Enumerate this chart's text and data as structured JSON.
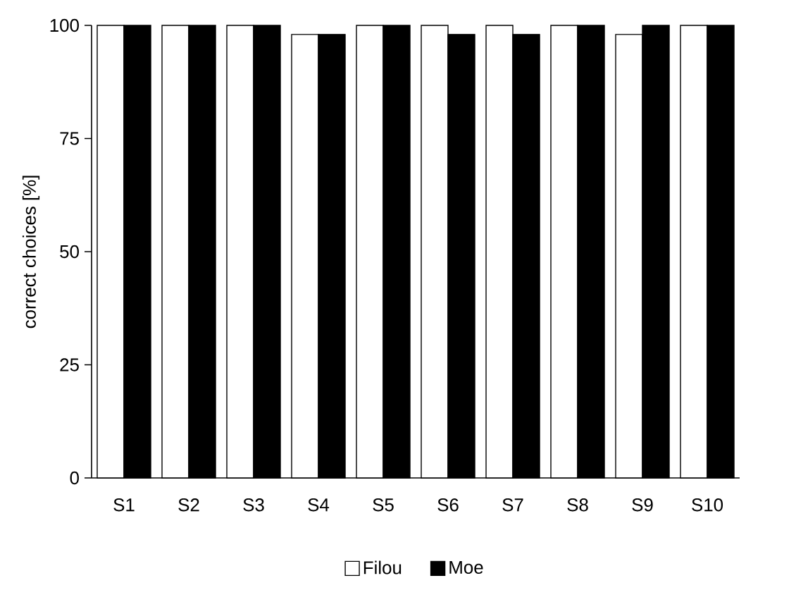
{
  "chart_data": {
    "type": "bar",
    "ylabel": "correct choices [%]",
    "categories": [
      "S1",
      "S2",
      "S3",
      "S4",
      "S5",
      "S6",
      "S7",
      "S8",
      "S9",
      "S10"
    ],
    "series": [
      {
        "name": "Filou",
        "color": "#ffffff",
        "values": [
          100,
          100,
          100,
          98,
          100,
          100,
          100,
          100,
          98,
          100
        ]
      },
      {
        "name": "Moe",
        "color": "#000000",
        "values": [
          100,
          100,
          100,
          98,
          100,
          98,
          98,
          100,
          100,
          100
        ]
      }
    ],
    "ylim": [
      0,
      100
    ],
    "yticks": [
      0,
      25,
      50,
      75,
      100
    ],
    "grid": false,
    "legend": "bottom"
  }
}
